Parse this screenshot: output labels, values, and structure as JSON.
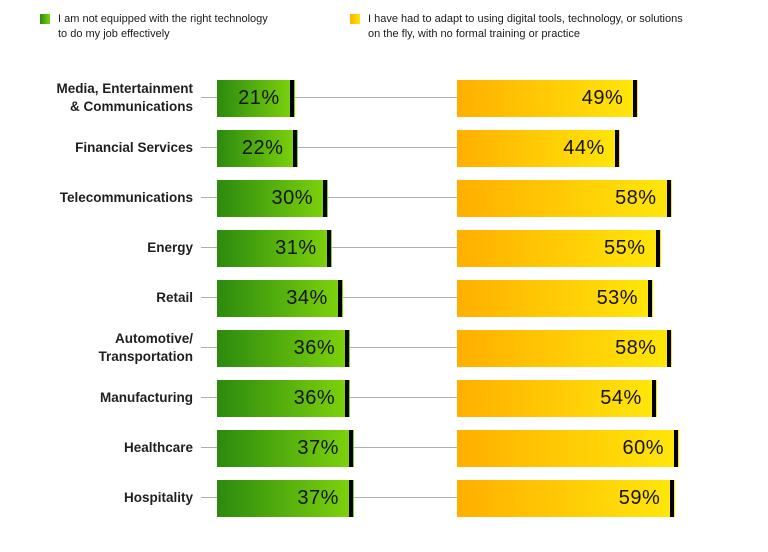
{
  "page": {
    "background": "#ffffff"
  },
  "legend": {
    "items": [
      {
        "label": "I am not equipped with the right technology\nto do my job effectively",
        "swatch_colors": [
          "#2b8a0e",
          "#7fd40c"
        ]
      },
      {
        "label": "I have had to adapt to using digital tools, technology, or solutions\non the fly, with no formal training or practice",
        "swatch_colors": [
          "#ffaf00",
          "#ffe70a"
        ]
      }
    ]
  },
  "chart_data": {
    "type": "bar",
    "orientation": "horizontal",
    "title": "",
    "categories": [
      "Media, Entertainment\n& Communications",
      "Financial Services",
      "Telecommunications",
      "Energy",
      "Retail",
      "Automotive/\nTransportation",
      "Manufacturing",
      "Healthcare",
      "Hospitality"
    ],
    "series": [
      {
        "name": "I am not equipped with the right technology to do my job effectively",
        "values": [
          21,
          22,
          30,
          31,
          34,
          36,
          36,
          37,
          37
        ],
        "gradient": [
          "#2b8a0e",
          "#7fd40c"
        ],
        "value_suffix": "%"
      },
      {
        "name": "I have had to adapt to using digital tools, technology, or solutions on the fly, with no formal training or practice",
        "values": [
          49,
          44,
          58,
          55,
          53,
          58,
          54,
          60,
          59
        ],
        "gradient": [
          "#ffaf00",
          "#ffe70a"
        ],
        "value_suffix": "%"
      }
    ],
    "value_labels_shown": true,
    "axes_shown": false,
    "grid": false,
    "xlim": [
      0,
      65
    ],
    "legend_position": "top",
    "bar_end_cap_color": "#000000",
    "connector_line_color": "#aeaeae",
    "category_label_color": "#1f1f1f",
    "value_label_color": "#141414"
  }
}
